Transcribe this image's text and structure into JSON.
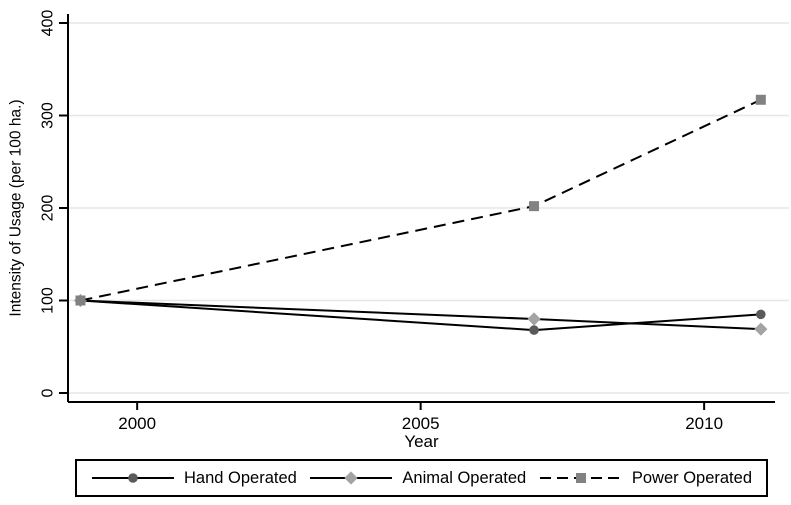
{
  "chart_data": {
    "type": "line",
    "x": [
      1999,
      2007,
      2011
    ],
    "series": [
      {
        "name": "Hand Operated",
        "values": [
          100,
          68,
          85
        ],
        "line_style": "solid",
        "line_color": "#000000",
        "marker": "circle",
        "marker_color": "#5a5a5a"
      },
      {
        "name": "Animal Operated",
        "values": [
          100,
          80,
          69
        ],
        "line_style": "solid",
        "line_color": "#000000",
        "marker": "diamond",
        "marker_color": "#a3a3a3"
      },
      {
        "name": "Power Operated",
        "values": [
          100,
          202,
          317
        ],
        "line_style": "dashed",
        "line_color": "#000000",
        "marker": "square",
        "marker_color": "#828282"
      }
    ],
    "title": "",
    "xlabel": "Year",
    "ylabel": "Intensity of Usage (per 100 ha.)",
    "xlim": [
      1998.78,
      2011.25
    ],
    "ylim": [
      0,
      400
    ],
    "xticks": [
      2000,
      2005,
      2010
    ],
    "yticks": [
      0,
      100,
      200,
      300,
      400
    ],
    "grid": "horizontal",
    "gridline_color": "#e6e6e6",
    "axis_color": "#000000",
    "text_color": "#000000",
    "legend_position": "bottom"
  }
}
